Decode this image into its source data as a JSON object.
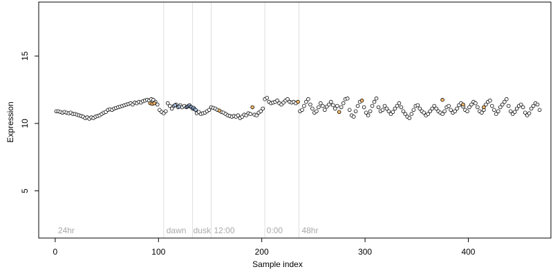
{
  "chart_data": {
    "type": "scatter",
    "title": "",
    "xlabel": "Sample index",
    "ylabel": "Expression",
    "xlim": [
      -16,
      480
    ],
    "ylim": [
      1.5,
      19
    ],
    "xticks": [
      0,
      100,
      200,
      300,
      400
    ],
    "yticks": [
      5,
      10,
      15
    ],
    "grid": false,
    "legend": "none",
    "phase_lines": [
      105,
      133,
      151,
      203,
      236
    ],
    "phase_labels": [
      {
        "text": "24hr",
        "x": 2
      },
      {
        "text": "dawn",
        "x": 107
      },
      {
        "text": "dusk",
        "x": 133
      },
      {
        "text": "12:00",
        "x": 153
      },
      {
        "text": "0:00",
        "x": 204
      },
      {
        "text": "48hr",
        "x": 238
      }
    ],
    "colors": {
      "point_edge": "#000000",
      "point_fill_default": "#ffffff",
      "point_fill_blue": "#a7c1e6",
      "point_fill_orange": "#f5b96a",
      "phase_line": "#dedede",
      "phase_label": "#a8a8a8"
    },
    "series": [
      {
        "color_key": "default",
        "values": [
          [
            1,
            10.9
          ],
          [
            3,
            10.9
          ],
          [
            5,
            10.85
          ],
          [
            7,
            10.8
          ],
          [
            9,
            10.85
          ],
          [
            11,
            10.8
          ],
          [
            13,
            10.75
          ],
          [
            15,
            10.8
          ],
          [
            17,
            10.7
          ],
          [
            19,
            10.7
          ],
          [
            21,
            10.65
          ],
          [
            23,
            10.6
          ],
          [
            25,
            10.55
          ],
          [
            27,
            10.5
          ],
          [
            29,
            10.4
          ],
          [
            31,
            10.45
          ],
          [
            33,
            10.35
          ],
          [
            35,
            10.45
          ],
          [
            37,
            10.4
          ],
          [
            39,
            10.5
          ],
          [
            41,
            10.55
          ],
          [
            43,
            10.6
          ],
          [
            45,
            10.7
          ],
          [
            47,
            10.8
          ],
          [
            49,
            10.85
          ],
          [
            51,
            11.0
          ],
          [
            53,
            11.05
          ],
          [
            55,
            11.0
          ],
          [
            57,
            11.1
          ],
          [
            59,
            11.15
          ],
          [
            61,
            11.2
          ],
          [
            63,
            11.25
          ],
          [
            65,
            11.3
          ],
          [
            67,
            11.35
          ],
          [
            69,
            11.4
          ],
          [
            71,
            11.45
          ],
          [
            73,
            11.5
          ],
          [
            75,
            11.4
          ],
          [
            77,
            11.55
          ],
          [
            79,
            11.5
          ],
          [
            81,
            11.6
          ],
          [
            83,
            11.55
          ],
          [
            85,
            11.65
          ],
          [
            87,
            11.7
          ],
          [
            89,
            11.75
          ],
          [
            91,
            11.7
          ],
          [
            93,
            11.8
          ],
          [
            95,
            11.75
          ],
          [
            97,
            11.6
          ],
          [
            99,
            11.4
          ],
          [
            101,
            11.0
          ],
          [
            103,
            10.85
          ],
          [
            105,
            10.75
          ],
          [
            107,
            10.9
          ],
          [
            109,
            11.5
          ],
          [
            111,
            11.3
          ],
          [
            113,
            11.1
          ],
          [
            115,
            11.3
          ],
          [
            117,
            11.4
          ],
          [
            119,
            11.2
          ],
          [
            121,
            11.35
          ],
          [
            123,
            11.2
          ],
          [
            125,
            11.3
          ],
          [
            137,
            10.75
          ],
          [
            139,
            10.85
          ],
          [
            141,
            10.7
          ],
          [
            143,
            10.75
          ],
          [
            145,
            10.8
          ],
          [
            147,
            10.9
          ],
          [
            149,
            11.0
          ],
          [
            151,
            11.2
          ],
          [
            153,
            11.15
          ],
          [
            155,
            11.1
          ],
          [
            157,
            11.0
          ],
          [
            161,
            10.85
          ],
          [
            163,
            10.8
          ],
          [
            165,
            10.7
          ],
          [
            167,
            10.6
          ],
          [
            169,
            10.55
          ],
          [
            171,
            10.5
          ],
          [
            173,
            10.55
          ],
          [
            175,
            10.5
          ],
          [
            177,
            10.6
          ],
          [
            179,
            10.4
          ],
          [
            181,
            10.5
          ],
          [
            183,
            10.65
          ],
          [
            185,
            10.6
          ],
          [
            187,
            10.75
          ],
          [
            189,
            10.7
          ],
          [
            193,
            10.65
          ],
          [
            195,
            10.6
          ],
          [
            197,
            10.8
          ],
          [
            199,
            10.9
          ],
          [
            201,
            11.1
          ],
          [
            203,
            11.8
          ],
          [
            205,
            11.9
          ],
          [
            207,
            11.6
          ],
          [
            209,
            11.5
          ],
          [
            211,
            11.55
          ],
          [
            213,
            11.6
          ],
          [
            215,
            11.7
          ],
          [
            217,
            11.5
          ],
          [
            219,
            11.4
          ],
          [
            221,
            11.55
          ],
          [
            223,
            11.7
          ],
          [
            225,
            11.8
          ],
          [
            227,
            11.6
          ],
          [
            229,
            11.55
          ],
          [
            231,
            11.6
          ],
          [
            233,
            11.5
          ],
          [
            237,
            10.9
          ],
          [
            239,
            11.0
          ],
          [
            241,
            11.3
          ],
          [
            243,
            11.6
          ],
          [
            245,
            11.8
          ],
          [
            247,
            11.4
          ],
          [
            249,
            11.1
          ],
          [
            251,
            10.8
          ],
          [
            253,
            10.9
          ],
          [
            255,
            11.2
          ],
          [
            257,
            11.5
          ],
          [
            259,
            11.3
          ],
          [
            261,
            11.0
          ],
          [
            263,
            11.25
          ],
          [
            265,
            11.4
          ],
          [
            267,
            11.6
          ],
          [
            269,
            11.35
          ],
          [
            271,
            11.1
          ],
          [
            273,
            11.3
          ],
          [
            277,
            11.2
          ],
          [
            279,
            11.5
          ],
          [
            281,
            11.8
          ],
          [
            283,
            11.85
          ],
          [
            285,
            11.0
          ],
          [
            287,
            10.6
          ],
          [
            289,
            10.5
          ],
          [
            291,
            10.9
          ],
          [
            293,
            11.3
          ],
          [
            295,
            11.6
          ],
          [
            299,
            11.2
          ],
          [
            301,
            10.8
          ],
          [
            303,
            10.6
          ],
          [
            305,
            10.9
          ],
          [
            307,
            11.3
          ],
          [
            309,
            11.6
          ],
          [
            311,
            11.85
          ],
          [
            313,
            11.2
          ],
          [
            315,
            10.9
          ],
          [
            317,
            11.0
          ],
          [
            319,
            11.3
          ],
          [
            321,
            11.1
          ],
          [
            323,
            10.9
          ],
          [
            325,
            10.7
          ],
          [
            327,
            10.85
          ],
          [
            329,
            11.1
          ],
          [
            331,
            11.3
          ],
          [
            333,
            11.5
          ],
          [
            335,
            11.2
          ],
          [
            337,
            10.9
          ],
          [
            339,
            10.7
          ],
          [
            341,
            10.5
          ],
          [
            343,
            10.4
          ],
          [
            345,
            10.7
          ],
          [
            347,
            11.0
          ],
          [
            349,
            11.3
          ],
          [
            351,
            11.35
          ],
          [
            353,
            11.1
          ],
          [
            355,
            10.9
          ],
          [
            357,
            10.8
          ],
          [
            359,
            10.6
          ],
          [
            361,
            10.7
          ],
          [
            363,
            10.9
          ],
          [
            365,
            11.1
          ],
          [
            367,
            11.3
          ],
          [
            369,
            11.1
          ],
          [
            371,
            10.9
          ],
          [
            373,
            10.8
          ],
          [
            375,
            10.7
          ],
          [
            377,
            10.9
          ],
          [
            379,
            11.2
          ],
          [
            381,
            11.3
          ],
          [
            383,
            11.0
          ],
          [
            385,
            10.8
          ],
          [
            387,
            10.9
          ],
          [
            389,
            11.1
          ],
          [
            391,
            11.35
          ],
          [
            393,
            11.5
          ],
          [
            395,
            11.25
          ],
          [
            397,
            11.0
          ],
          [
            399,
            10.9
          ],
          [
            401,
            11.2
          ],
          [
            403,
            11.4
          ],
          [
            405,
            11.6
          ],
          [
            407,
            11.5
          ],
          [
            409,
            11.2
          ],
          [
            411,
            10.9
          ],
          [
            413,
            10.8
          ],
          [
            415,
            11.0
          ],
          [
            417,
            11.4
          ],
          [
            419,
            11.6
          ],
          [
            421,
            11.7
          ],
          [
            423,
            11.3
          ],
          [
            425,
            11.0
          ],
          [
            427,
            10.7
          ],
          [
            429,
            10.9
          ],
          [
            431,
            11.2
          ],
          [
            433,
            11.4
          ],
          [
            435,
            11.6
          ],
          [
            437,
            11.8
          ],
          [
            439,
            11.3
          ],
          [
            441,
            10.9
          ],
          [
            443,
            10.7
          ],
          [
            445,
            10.85
          ],
          [
            447,
            11.1
          ],
          [
            449,
            11.3
          ],
          [
            451,
            11.4
          ],
          [
            453,
            11.2
          ],
          [
            455,
            10.8
          ],
          [
            457,
            10.6
          ],
          [
            459,
            10.75
          ],
          [
            461,
            11.1
          ],
          [
            463,
            11.3
          ],
          [
            465,
            11.5
          ],
          [
            467,
            11.4
          ],
          [
            469,
            11.0
          ]
        ]
      },
      {
        "color_key": "blue",
        "values": [
          [
            127,
            11.2
          ],
          [
            128,
            11.25
          ],
          [
            129,
            11.3
          ],
          [
            130,
            11.35
          ],
          [
            131,
            11.25
          ],
          [
            132,
            11.2
          ],
          [
            133,
            11.1
          ],
          [
            134,
            11.15
          ],
          [
            135,
            11.05
          ],
          [
            136,
            11.0
          ],
          [
            120,
            11.25
          ],
          [
            116,
            11.35
          ]
        ]
      },
      {
        "color_key": "orange",
        "values": [
          [
            92,
            11.5
          ],
          [
            94,
            11.45
          ],
          [
            96,
            11.5
          ],
          [
            159,
            10.95
          ],
          [
            191,
            11.2
          ],
          [
            235,
            11.6
          ],
          [
            275,
            10.85
          ],
          [
            297,
            11.7
          ],
          [
            375,
            11.75
          ],
          [
            395,
            11.4
          ],
          [
            415,
            11.2
          ]
        ]
      }
    ]
  }
}
